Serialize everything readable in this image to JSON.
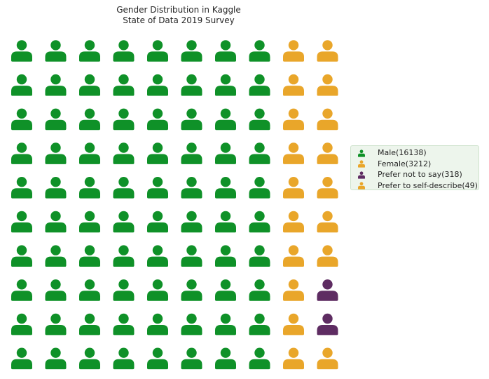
{
  "chart_data": {
    "type": "waffle",
    "title": [
      "Gender Distribution in Kaggle",
      "State of Data 2019 Survey"
    ],
    "rows": 10,
    "columns": 10,
    "fill_order": "column-major",
    "icon": "user-icon",
    "grid": false,
    "legend_position": "right",
    "series": [
      {
        "name": "Male(16138)",
        "value": 16138,
        "icons": 80,
        "color": "#0f9128"
      },
      {
        "name": "Female(3212)",
        "value": 3212,
        "icons": 17,
        "color": "#e9a62a"
      },
      {
        "name": "Prefer not to say(318)",
        "value": 318,
        "icons": 2,
        "color": "#5e2c62"
      },
      {
        "name": "Prefer to self-describe(49)",
        "value": 49,
        "icons": 1,
        "color": "#e9a62a"
      }
    ]
  }
}
